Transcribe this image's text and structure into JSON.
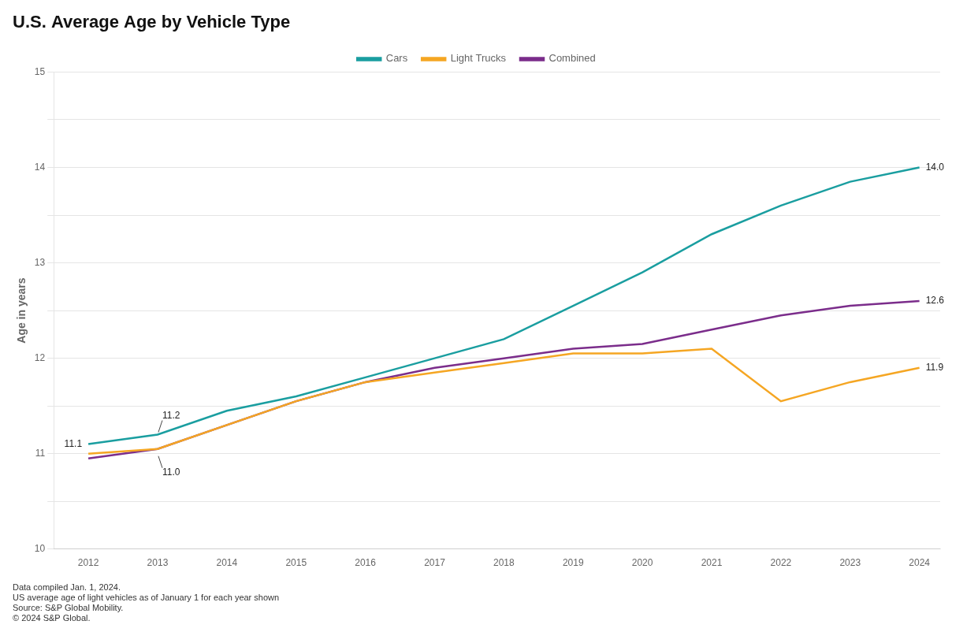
{
  "chart_data": {
    "type": "line",
    "title": "U.S. Average Age by Vehicle Type",
    "ylabel": "Age in years",
    "x": [
      2012,
      2013,
      2014,
      2015,
      2016,
      2017,
      2018,
      2019,
      2020,
      2021,
      2022,
      2023,
      2024
    ],
    "series": [
      {
        "name": "Cars",
        "color": "#1a9ea0",
        "values": [
          11.1,
          11.2,
          11.45,
          11.6,
          11.8,
          12.0,
          12.2,
          12.55,
          12.9,
          13.3,
          13.6,
          13.85,
          14.0
        ]
      },
      {
        "name": "Light Trucks",
        "color": "#f5a623",
        "values": [
          11.0,
          11.05,
          11.3,
          11.55,
          11.75,
          11.85,
          11.95,
          12.05,
          12.05,
          12.1,
          11.55,
          11.75,
          11.9
        ]
      },
      {
        "name": "Combined",
        "color": "#7b2d8b",
        "values": [
          10.95,
          11.05,
          11.3,
          11.55,
          11.75,
          11.9,
          12.0,
          12.1,
          12.15,
          12.3,
          12.45,
          12.55,
          12.6
        ]
      }
    ],
    "xlim": [
      2011.5,
      2024.3
    ],
    "xticks": [
      2012,
      2013,
      2014,
      2015,
      2016,
      2017,
      2018,
      2019,
      2020,
      2021,
      2022,
      2023,
      2024
    ],
    "ylim": [
      10,
      15
    ],
    "yticks": [
      10,
      {
        "value": 10.5,
        "label": null
      },
      11,
      {
        "value": 11.5,
        "label": null
      },
      12,
      {
        "value": 12.5,
        "label": null
      },
      13,
      {
        "value": 13.5,
        "label": null
      },
      14,
      {
        "value": 14.5,
        "label": null
      },
      15
    ],
    "grid": "y",
    "legend": "top",
    "annotations": [
      {
        "text": "14.0",
        "x": 2024,
        "y": 14.0
      },
      {
        "text": "12.6",
        "x": 2024,
        "y": 12.6
      },
      {
        "text": "11.9",
        "x": 2024,
        "y": 11.9
      },
      {
        "text": "11.2",
        "x": 2013,
        "y": 11.2
      },
      {
        "text": "11.1",
        "x": 2012,
        "y": 11.1
      },
      {
        "text": "11.0",
        "x": 2013,
        "y": 11.0
      }
    ],
    "footnotes": [
      "Data compiled Jan. 1, 2024.",
      "US average age of light vehicles as of January 1 for each year shown",
      "Source: S&P Global Mobility.",
      "© 2024 S&P Global."
    ]
  }
}
